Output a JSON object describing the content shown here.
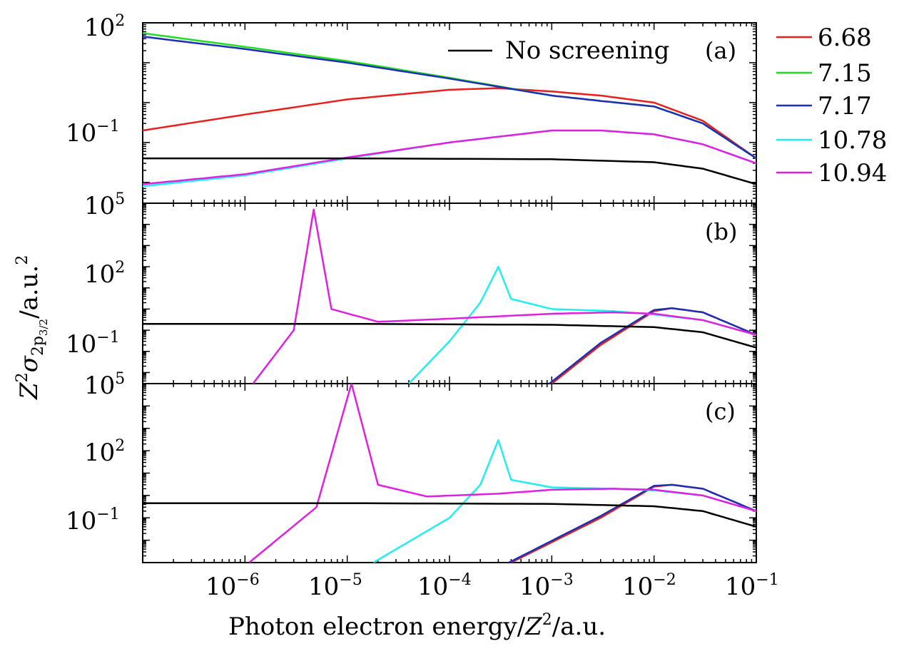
{
  "figure": {
    "y_axis_title": {
      "base": "Z",
      "sup1": "2",
      "sigma": "σ",
      "sub_pre": "2p",
      "sub_post": "3/2",
      "tail": "/a.u.",
      "sup2": "2"
    },
    "x_axis_title": {
      "pre": "Photon electron energy/",
      "var": "Z",
      "sup": "2",
      "post": "/a.u."
    }
  },
  "legend": {
    "entries": [
      {
        "label": "6.68",
        "color": "#e8201c"
      },
      {
        "label": "7.15",
        "color": "#22dd22"
      },
      {
        "label": "7.17",
        "color": "#1f2fb4"
      },
      {
        "label": "10.78",
        "color": "#22eeee"
      },
      {
        "label": "10.94",
        "color": "#e020e0"
      }
    ],
    "inset_label": "No screening",
    "inset_color": "#000000"
  },
  "chart_data": [
    {
      "type": "line",
      "panel": "(a)",
      "x_scale": "log",
      "y_scale": "log",
      "xlim": [
        1e-07,
        0.1
      ],
      "ylim": [
        0.003,
        100
      ],
      "x_tick_labels": [
        {
          "mantissa": "10",
          "exp": "−6"
        },
        {
          "mantissa": "10",
          "exp": "−5"
        },
        {
          "mantissa": "10",
          "exp": "−4"
        },
        {
          "mantissa": "10",
          "exp": "−3"
        },
        {
          "mantissa": "10",
          "exp": "−2"
        },
        {
          "mantissa": "10",
          "exp": "−1"
        }
      ],
      "y_tick_labels": [
        {
          "mantissa": "10",
          "exp": "2"
        },
        {
          "mantissa": "10",
          "exp": "−1"
        }
      ],
      "series": [
        {
          "name": "6.68",
          "color": "#e8201c",
          "x": [
            1e-07,
            1e-06,
            1e-05,
            0.0001,
            0.0003,
            0.001,
            0.003,
            0.01,
            0.03,
            0.1
          ],
          "y": [
            0.2,
            0.5,
            1.2,
            2.1,
            2.3,
            1.9,
            1.5,
            1.0,
            0.35,
            0.04
          ]
        },
        {
          "name": "7.15",
          "color": "#22dd22",
          "x": [
            1e-07,
            1e-06,
            1e-05,
            0.0001,
            0.001,
            0.003,
            0.01,
            0.03,
            0.1
          ],
          "y": [
            55,
            25,
            11,
            4.2,
            1.5,
            1.1,
            0.8,
            0.3,
            0.04
          ]
        },
        {
          "name": "7.17",
          "color": "#1f2fb4",
          "x": [
            1e-07,
            1e-06,
            1e-05,
            0.0001,
            0.001,
            0.003,
            0.01,
            0.03,
            0.1
          ],
          "y": [
            45,
            22,
            10,
            4.0,
            1.5,
            1.1,
            0.8,
            0.3,
            0.04
          ]
        },
        {
          "name": "10.78",
          "color": "#22eeee",
          "x": [
            1e-07,
            1e-06,
            1e-05,
            0.0001,
            0.001,
            0.003,
            0.01,
            0.03,
            0.1
          ],
          "y": [
            0.008,
            0.015,
            0.04,
            0.1,
            0.2,
            0.2,
            0.16,
            0.09,
            0.03
          ]
        },
        {
          "name": "10.94",
          "color": "#e020e0",
          "x": [
            1e-07,
            1e-06,
            1e-05,
            0.0001,
            0.001,
            0.003,
            0.01,
            0.03,
            0.1
          ],
          "y": [
            0.009,
            0.016,
            0.042,
            0.1,
            0.2,
            0.2,
            0.16,
            0.09,
            0.03
          ]
        },
        {
          "name": "No screening",
          "color": "#000000",
          "x": [
            1e-07,
            1e-05,
            0.001,
            0.01,
            0.03,
            0.1
          ],
          "y": [
            0.04,
            0.04,
            0.038,
            0.032,
            0.022,
            0.009
          ]
        }
      ]
    },
    {
      "type": "line",
      "panel": "(b)",
      "x_scale": "log",
      "y_scale": "log",
      "xlim": [
        1e-07,
        0.1
      ],
      "ylim": [
        0.0003,
        100000
      ],
      "y_tick_labels": [
        {
          "mantissa": "10",
          "exp": "5"
        },
        {
          "mantissa": "10",
          "exp": "2"
        },
        {
          "mantissa": "10",
          "exp": "−1"
        }
      ],
      "series": [
        {
          "name": "6.68",
          "color": "#e8201c",
          "x": [
            0.001,
            0.003,
            0.01,
            0.015,
            0.03,
            0.1
          ],
          "y": [
            0.0003,
            0.02,
            0.8,
            1.1,
            0.7,
            0.06
          ]
        },
        {
          "name": "7.17",
          "color": "#1f2fb4",
          "x": [
            0.00095,
            0.003,
            0.01,
            0.015,
            0.03,
            0.1
          ],
          "y": [
            0.0003,
            0.025,
            0.9,
            1.1,
            0.7,
            0.06
          ]
        },
        {
          "name": "10.78",
          "color": "#22eeee",
          "x": [
            4e-05,
            0.0001,
            0.0002,
            0.0003,
            0.0004,
            0.001,
            0.004,
            0.01,
            0.03,
            0.1
          ],
          "y": [
            0.0003,
            0.03,
            2,
            100,
            3,
            1.0,
            0.8,
            0.55,
            0.3,
            0.06
          ]
        },
        {
          "name": "10.94",
          "color": "#e020e0",
          "x": [
            1.2e-06,
            3e-06,
            4.7e-06,
            7e-06,
            2e-05,
            0.0001,
            0.001,
            0.004,
            0.01,
            0.03,
            0.1
          ],
          "y": [
            0.0003,
            0.1,
            50000,
            1.0,
            0.25,
            0.35,
            0.6,
            0.7,
            0.6,
            0.3,
            0.06
          ]
        },
        {
          "name": "No screening",
          "color": "#000000",
          "x": [
            1e-07,
            1e-05,
            0.001,
            0.01,
            0.03,
            0.1
          ],
          "y": [
            0.2,
            0.2,
            0.18,
            0.14,
            0.08,
            0.015
          ]
        }
      ]
    },
    {
      "type": "line",
      "panel": "(c)",
      "x_scale": "log",
      "y_scale": "log",
      "xlim": [
        1e-07,
        0.1
      ],
      "ylim": [
        0.001,
        100000
      ],
      "y_tick_labels": [
        {
          "mantissa": "10",
          "exp": "5"
        },
        {
          "mantissa": "10",
          "exp": "2"
        },
        {
          "mantissa": "10",
          "exp": "−1"
        }
      ],
      "series": [
        {
          "name": "6.68",
          "color": "#e8201c",
          "x": [
            0.0004,
            0.003,
            0.01,
            0.015,
            0.03,
            0.1
          ],
          "y": [
            0.001,
            0.1,
            2.5,
            3.0,
            2.0,
            0.2
          ]
        },
        {
          "name": "7.17",
          "color": "#1f2fb4",
          "x": [
            0.00038,
            0.003,
            0.01,
            0.015,
            0.03,
            0.1
          ],
          "y": [
            0.001,
            0.12,
            2.7,
            3.0,
            2.0,
            0.2
          ]
        },
        {
          "name": "10.78",
          "color": "#22eeee",
          "x": [
            1.8e-05,
            0.0001,
            0.0002,
            0.0003,
            0.0004,
            0.001,
            0.004,
            0.01,
            0.03,
            0.1
          ],
          "y": [
            0.001,
            0.1,
            3,
            300,
            5,
            2.3,
            2.0,
            1.7,
            1.0,
            0.2
          ]
        },
        {
          "name": "10.94",
          "color": "#e020e0",
          "x": [
            1.1e-06,
            5e-06,
            1.1e-05,
            2e-05,
            6e-05,
            0.0003,
            0.001,
            0.004,
            0.01,
            0.03,
            0.1
          ],
          "y": [
            0.001,
            0.3,
            100000,
            3,
            0.9,
            1.2,
            1.8,
            2.0,
            1.8,
            1.0,
            0.2
          ]
        },
        {
          "name": "No screening",
          "color": "#000000",
          "x": [
            1e-07,
            1e-05,
            0.001,
            0.01,
            0.03,
            0.1
          ],
          "y": [
            0.45,
            0.45,
            0.42,
            0.33,
            0.2,
            0.04
          ]
        }
      ]
    }
  ]
}
